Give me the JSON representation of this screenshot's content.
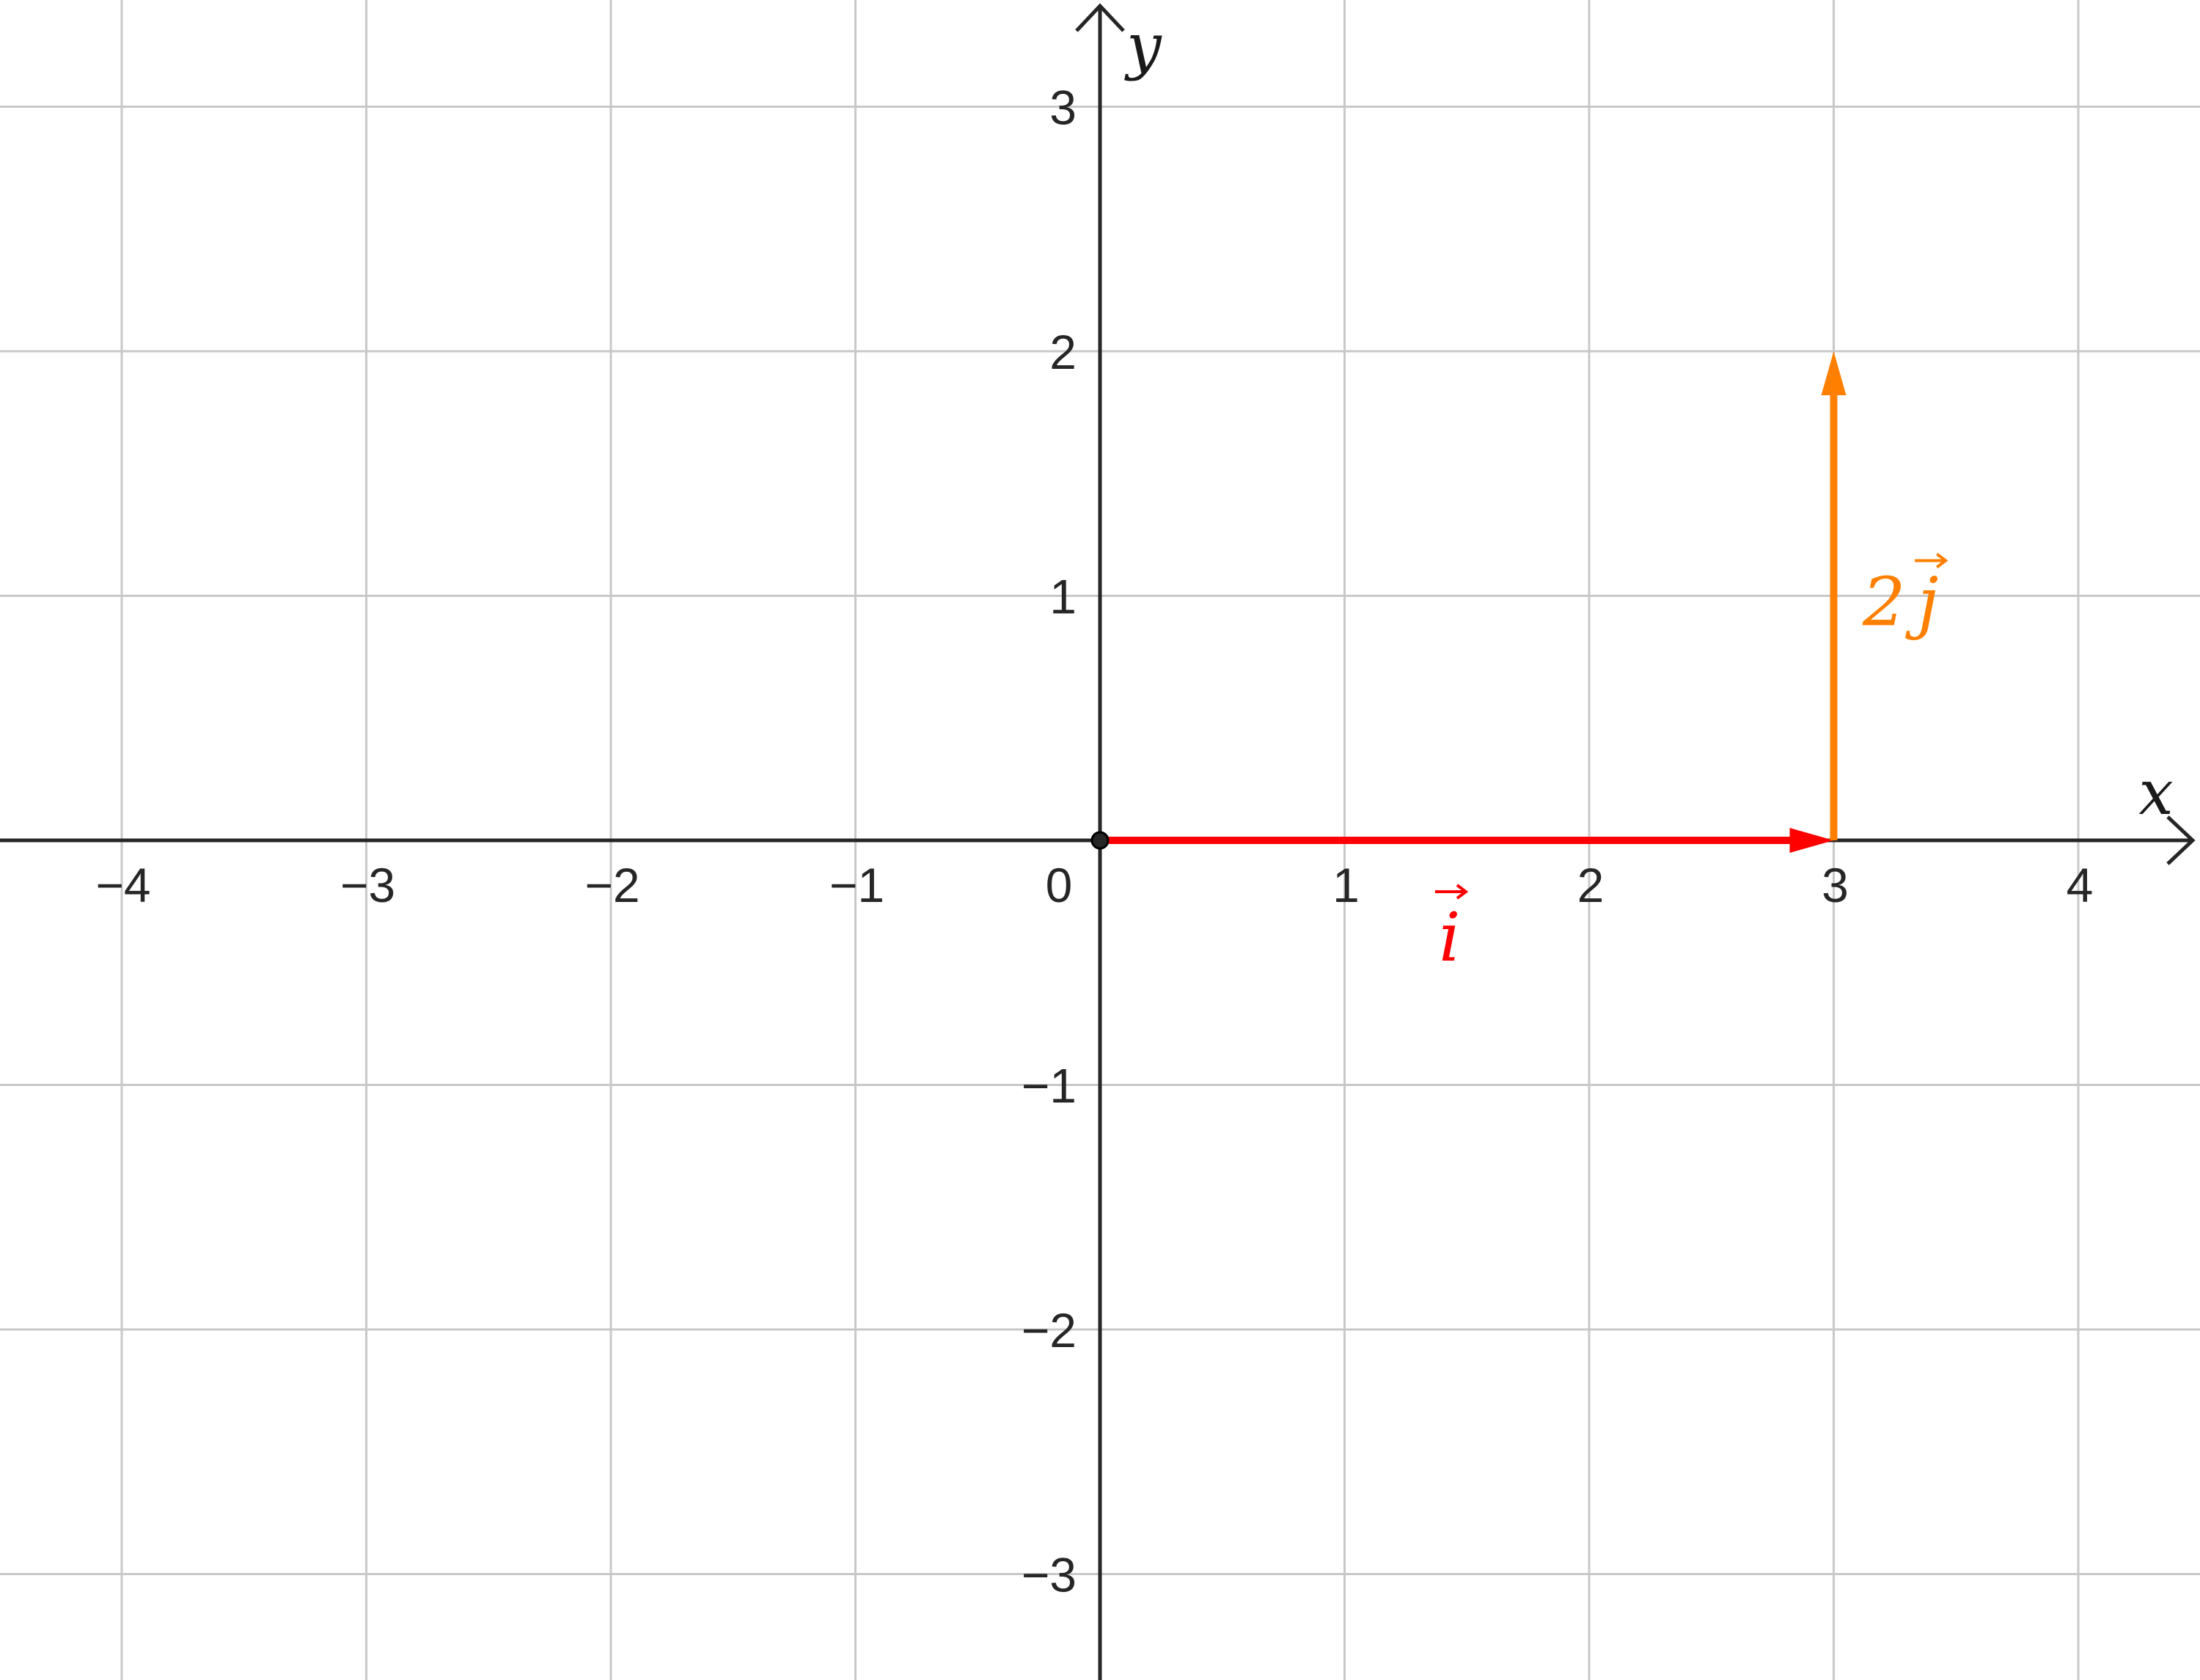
{
  "axes": {
    "x_label": "x",
    "y_label": "y",
    "xlim": [
      -4.5,
      4.5
    ],
    "ylim": [
      -3.45,
      3.45
    ],
    "x_ticks": [
      {
        "value": -4,
        "label": "−4"
      },
      {
        "value": -3,
        "label": "−3"
      },
      {
        "value": -2,
        "label": "−2"
      },
      {
        "value": -1,
        "label": "−1"
      },
      {
        "value": 1,
        "label": "1"
      },
      {
        "value": 2,
        "label": "2"
      },
      {
        "value": 3,
        "label": "3"
      },
      {
        "value": 4,
        "label": "4"
      }
    ],
    "y_ticks": [
      {
        "value": 3,
        "label": "3"
      },
      {
        "value": 2,
        "label": "2"
      },
      {
        "value": 1,
        "label": "1"
      },
      {
        "value": -1,
        "label": "−1"
      },
      {
        "value": -2,
        "label": "−2"
      },
      {
        "value": -3,
        "label": "−3"
      }
    ],
    "origin_label": "0",
    "grid": true
  },
  "vectors": [
    {
      "id": "i",
      "label": "i",
      "from": [
        0,
        0
      ],
      "to": [
        3,
        0
      ],
      "color": "#ff0000"
    },
    {
      "id": "2j",
      "label_coeff": "2",
      "label": "j",
      "from": [
        3,
        0
      ],
      "to": [
        3,
        2
      ],
      "color": "#ff8000"
    }
  ],
  "points": [
    {
      "id": "origin",
      "at": [
        0,
        0
      ],
      "color": "#262626"
    }
  ],
  "colors": {
    "grid": "#c8c8c8",
    "axis": "#262626",
    "vector_i": "#ff0000",
    "vector_2j": "#ff8000"
  }
}
